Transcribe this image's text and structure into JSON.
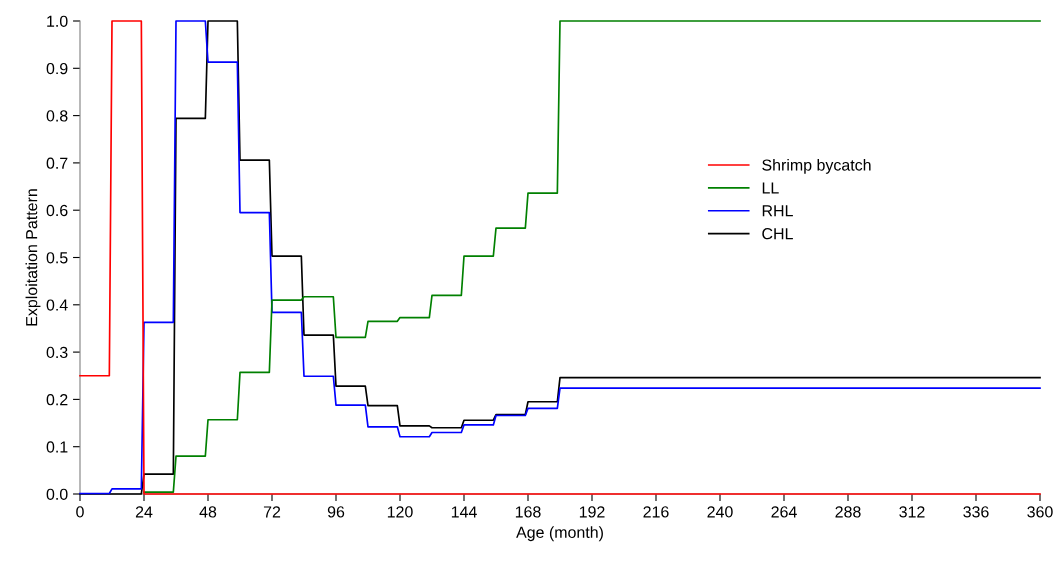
{
  "chart_data": {
    "type": "line",
    "xlabel": "Age (month)",
    "ylabel": "Exploitation Pattern",
    "x": [
      0,
      11,
      12,
      23,
      24,
      35,
      36,
      47,
      48,
      59,
      60,
      71,
      72,
      83,
      84,
      95,
      96,
      107,
      108,
      119,
      120,
      131,
      132,
      143,
      144,
      155,
      156,
      167,
      168,
      179,
      180,
      360
    ],
    "series": [
      {
        "name": "Shrimp bycatch",
        "color": "#ff0000",
        "values": [
          0.25,
          0.25,
          1.0,
          1.0,
          0,
          0,
          0,
          0,
          0,
          0,
          0,
          0,
          0,
          0,
          0,
          0,
          0,
          0,
          0,
          0,
          0,
          0,
          0,
          0,
          0,
          0,
          0,
          0,
          0,
          0,
          0,
          0
        ]
      },
      {
        "name": "LL",
        "color": "#008000",
        "values": [
          null,
          null,
          null,
          null,
          0.004,
          0.004,
          0.08,
          0.08,
          0.157,
          0.157,
          0.257,
          0.257,
          0.41,
          0.41,
          0.417,
          0.417,
          0.331,
          0.331,
          0.365,
          0.365,
          0.373,
          0.373,
          0.42,
          0.42,
          0.503,
          0.503,
          0.562,
          0.562,
          0.636,
          0.636,
          1.0,
          1.0
        ]
      },
      {
        "name": "RHL",
        "color": "#0000ff",
        "values": [
          0.001,
          0.001,
          0.011,
          0.011,
          0.363,
          0.363,
          1.0,
          1.0,
          0.913,
          0.913,
          0.595,
          0.595,
          0.384,
          0.384,
          0.249,
          0.249,
          0.188,
          0.188,
          0.142,
          0.142,
          0.121,
          0.121,
          0.13,
          0.13,
          0.146,
          0.146,
          0.166,
          0.166,
          0.181,
          0.181,
          0.224,
          0.224
        ]
      },
      {
        "name": "CHL",
        "color": "#000000",
        "values": [
          0,
          0,
          0,
          0,
          0.042,
          0.042,
          0.794,
          0.794,
          1.0,
          1.0,
          0.706,
          0.706,
          0.503,
          0.503,
          0.336,
          0.336,
          0.228,
          0.228,
          0.187,
          0.187,
          0.144,
          0.144,
          0.14,
          0.14,
          0.156,
          0.156,
          0.168,
          0.168,
          0.195,
          0.195,
          0.246,
          0.246
        ]
      }
    ],
    "xlim": [
      0,
      360
    ],
    "xticks": [
      0,
      24,
      48,
      72,
      96,
      120,
      144,
      168,
      192,
      216,
      240,
      264,
      288,
      312,
      336,
      360
    ],
    "ylim": [
      0,
      1.0
    ],
    "yticks": [
      {
        "value": 0,
        "label": "0.0"
      },
      {
        "value": 0.1,
        "label": "0.1"
      },
      {
        "value": 0.2,
        "label": "0.2"
      },
      {
        "value": 0.3,
        "label": "0.3"
      },
      {
        "value": 0.4,
        "label": "0.4"
      },
      {
        "value": 0.5,
        "label": "0.5"
      },
      {
        "value": 0.6,
        "label": "0.6"
      },
      {
        "value": 0.7,
        "label": "0.7"
      },
      {
        "value": 0.8,
        "label": "0.8"
      },
      {
        "value": 0.9,
        "label": "0.9"
      },
      {
        "value": 1.0,
        "label": "1.0"
      }
    ],
    "grid": false,
    "legend": "right",
    "marker": "none",
    "line_style": "solid"
  }
}
